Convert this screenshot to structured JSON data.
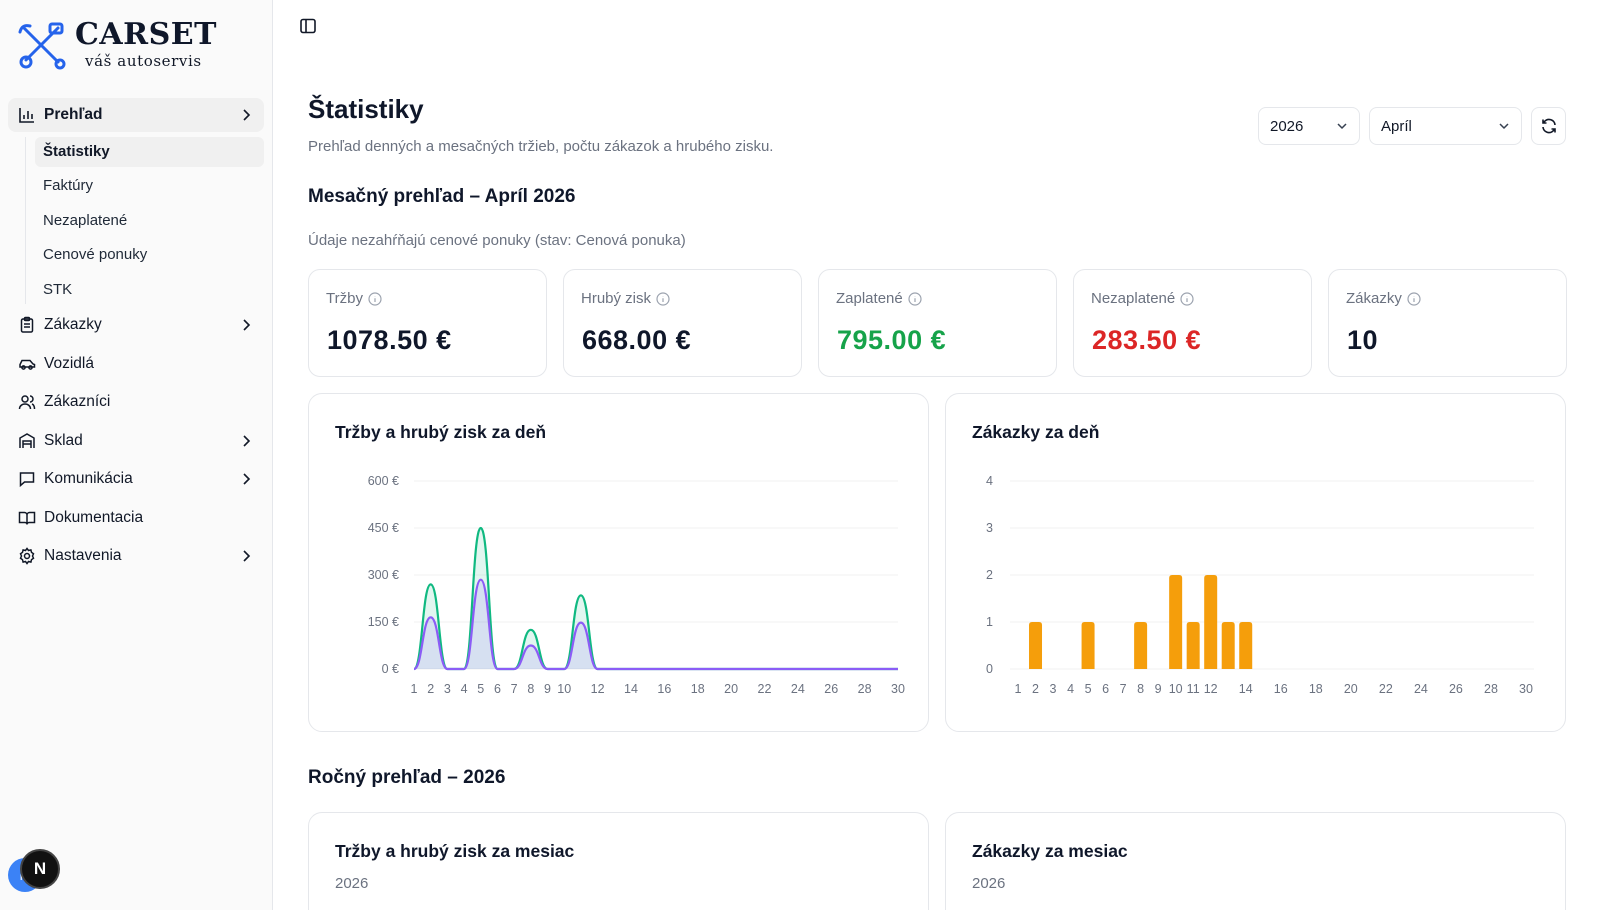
{
  "brand": {
    "title": "CARSET",
    "subtitle": "váš autoservis"
  },
  "sidebar": {
    "items": [
      {
        "label": "Prehľad",
        "icon": "bar-chart-icon",
        "expandable": true,
        "active": true,
        "children": [
          "Štatistiky",
          "Faktúry",
          "Nezaplatené",
          "Cenové ponuky",
          "STK"
        ],
        "active_child": "Štatistiky"
      },
      {
        "label": "Zákazky",
        "icon": "clipboard-icon",
        "expandable": true
      },
      {
        "label": "Vozidlá",
        "icon": "car-icon",
        "expandable": false
      },
      {
        "label": "Zákazníci",
        "icon": "users-icon",
        "expandable": false
      },
      {
        "label": "Sklad",
        "icon": "warehouse-icon",
        "expandable": true
      },
      {
        "label": "Komunikácia",
        "icon": "message-icon",
        "expandable": true
      },
      {
        "label": "Dokumentacia",
        "icon": "book-icon",
        "expandable": false
      },
      {
        "label": "Nastavenia",
        "icon": "gear-icon",
        "expandable": true
      }
    ],
    "avatar_initial": "M",
    "badge_letter": "N"
  },
  "header": {
    "title": "Štatistiky",
    "description": "Prehľad denných a mesačných tržieb, počtu zákazok a hrubého zisku.",
    "year_select": "2026",
    "month_select": "Apríl"
  },
  "monthly": {
    "title": "Mesačný prehľad – Apríl 2026",
    "note": "Údaje nezahŕňajú cenové ponuky (stav: Cenová ponuka)",
    "kpis": [
      {
        "label": "Tržby",
        "value": "1078.50 €",
        "color": "#0f172a"
      },
      {
        "label": "Hrubý zisk",
        "value": "668.00 €",
        "color": "#0f172a"
      },
      {
        "label": "Zaplatené",
        "value": "795.00 €",
        "color": "#16a34a"
      },
      {
        "label": "Nezaplatené",
        "value": "283.50 €",
        "color": "#dc2626"
      },
      {
        "label": "Zákazky",
        "value": "10",
        "color": "#0f172a"
      }
    ]
  },
  "yearly": {
    "title": "Ročný prehľad – 2026",
    "revenue_card": {
      "title": "Tržby a hrubý zisk za mesiac",
      "subtitle": "2026"
    },
    "orders_card": {
      "title": "Zákazky za mesiac",
      "subtitle": "2026"
    }
  },
  "chart_data": [
    {
      "type": "area",
      "title": "Tržby a hrubý zisk za deň",
      "x": [
        1,
        2,
        3,
        4,
        5,
        6,
        7,
        8,
        9,
        10,
        11,
        12,
        13,
        14,
        15,
        16,
        17,
        18,
        19,
        20,
        21,
        22,
        23,
        24,
        25,
        26,
        27,
        28,
        29,
        30
      ],
      "x_tick_labels": [
        "1",
        "2",
        "3",
        "4",
        "5",
        "6",
        "7",
        "8",
        "9",
        "10",
        "12",
        "14",
        "16",
        "18",
        "20",
        "22",
        "24",
        "26",
        "28",
        "30"
      ],
      "y_tick_labels": [
        "0 €",
        "150 €",
        "300 €",
        "450 €",
        "600 €"
      ],
      "ylim": [
        0,
        600
      ],
      "series": [
        {
          "values": [
            0,
            270,
            0,
            0,
            450,
            0,
            0,
            125,
            0,
            0,
            235,
            0,
            0,
            0,
            0,
            0,
            0,
            0,
            0,
            0,
            0,
            0,
            0,
            0,
            0,
            0,
            0,
            0,
            0,
            0
          ],
          "color": "#10b981"
        },
        {
          "values": [
            0,
            165,
            0,
            0,
            285,
            0,
            0,
            75,
            0,
            0,
            148,
            0,
            0,
            0,
            0,
            0,
            0,
            0,
            0,
            0,
            0,
            0,
            0,
            0,
            0,
            0,
            0,
            0,
            0,
            0
          ],
          "color": "#8b5cf6"
        }
      ]
    },
    {
      "type": "bar",
      "title": "Zákazky za deň",
      "x": [
        1,
        2,
        3,
        4,
        5,
        6,
        7,
        8,
        9,
        10,
        11,
        12,
        13,
        14,
        15,
        16,
        17,
        18,
        19,
        20,
        21,
        22,
        23,
        24,
        25,
        26,
        27,
        28,
        29,
        30
      ],
      "x_tick_labels": [
        "1",
        "2",
        "3",
        "4",
        "5",
        "6",
        "7",
        "8",
        "9",
        "10",
        "11",
        "12",
        "14",
        "16",
        "18",
        "20",
        "22",
        "24",
        "26",
        "28",
        "30"
      ],
      "y_tick_labels": [
        "0",
        "1",
        "2",
        "3",
        "4"
      ],
      "ylim": [
        0,
        4
      ],
      "values": [
        0,
        1,
        0,
        0,
        1,
        0,
        0,
        1,
        0,
        2,
        1,
        2,
        1,
        1,
        0,
        0,
        0,
        0,
        0,
        0,
        0,
        0,
        0,
        0,
        0,
        0,
        0,
        0,
        0,
        0
      ],
      "color": "#f59e0b"
    }
  ]
}
